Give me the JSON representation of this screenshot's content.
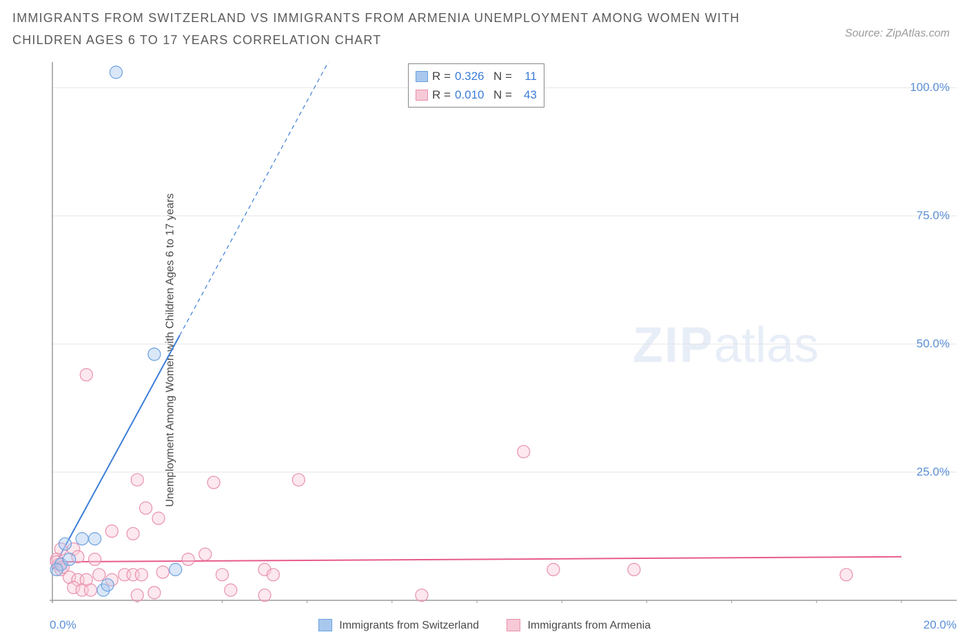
{
  "title": "IMMIGRANTS FROM SWITZERLAND VS IMMIGRANTS FROM ARMENIA UNEMPLOYMENT AMONG WOMEN WITH CHILDREN AGES 6 TO 17 YEARS CORRELATION CHART",
  "source": "Source: ZipAtlas.com",
  "ylabel": "Unemployment Among Women with Children Ages 6 to 17 years",
  "watermark_bold": "ZIP",
  "watermark_light": "atlas",
  "chart": {
    "type": "scatter",
    "xlim": [
      0,
      20
    ],
    "ylim": [
      0,
      105
    ],
    "x_ticks": [
      0,
      2,
      4,
      6,
      8,
      10,
      12,
      14,
      16,
      18,
      20
    ],
    "x_tick_labels_visible": {
      "0": "0.0%",
      "20": "20.0%"
    },
    "y_ticks": [
      25,
      50,
      75,
      100
    ],
    "y_tick_labels": {
      "25": "25.0%",
      "50": "50.0%",
      "75": "75.0%",
      "100": "100.0%"
    },
    "grid_color": "#e5e5e5",
    "axis_color": "#9a9a9a",
    "background_color": "#ffffff",
    "marker_radius": 9,
    "marker_stroke_width": 1.2,
    "marker_fill_opacity": 0.18,
    "line_width": 2
  },
  "series": {
    "blue": {
      "label": "Immigrants from Switzerland",
      "color_stroke": "#6aa0e0",
      "color_fill": "#a9c8ee",
      "line_color": "#3b7dd8",
      "R": "0.326",
      "N": "11",
      "points": [
        {
          "x": 1.5,
          "y": 103
        },
        {
          "x": 2.4,
          "y": 48
        },
        {
          "x": 0.3,
          "y": 11
        },
        {
          "x": 0.7,
          "y": 12
        },
        {
          "x": 1.0,
          "y": 12
        },
        {
          "x": 0.2,
          "y": 7
        },
        {
          "x": 0.1,
          "y": 6
        },
        {
          "x": 0.4,
          "y": 8
        },
        {
          "x": 1.2,
          "y": 2
        },
        {
          "x": 1.3,
          "y": 3
        },
        {
          "x": 2.9,
          "y": 6
        }
      ],
      "trend": {
        "x1": 0,
        "y1": 6,
        "x2": 6.5,
        "y2": 105,
        "dashed_from_x": 3.0
      }
    },
    "pink": {
      "label": "Immigrants from Armenia",
      "color_stroke": "#e890ac",
      "color_fill": "#f7c9d7",
      "line_color": "#e75a8d",
      "R": "0.010",
      "N": "43",
      "points": [
        {
          "x": 0.8,
          "y": 44
        },
        {
          "x": 11.1,
          "y": 29
        },
        {
          "x": 2.0,
          "y": 23.5
        },
        {
          "x": 3.8,
          "y": 23
        },
        {
          "x": 5.8,
          "y": 23.5
        },
        {
          "x": 2.2,
          "y": 18
        },
        {
          "x": 2.5,
          "y": 16
        },
        {
          "x": 1.4,
          "y": 13.5
        },
        {
          "x": 1.9,
          "y": 13
        },
        {
          "x": 0.2,
          "y": 10
        },
        {
          "x": 0.5,
          "y": 10
        },
        {
          "x": 0.1,
          "y": 8
        },
        {
          "x": 0.15,
          "y": 7
        },
        {
          "x": 0.1,
          "y": 7.5
        },
        {
          "x": 0.2,
          "y": 6
        },
        {
          "x": 0.25,
          "y": 6.5
        },
        {
          "x": 0.6,
          "y": 8.5
        },
        {
          "x": 1.0,
          "y": 8
        },
        {
          "x": 3.2,
          "y": 8
        },
        {
          "x": 3.6,
          "y": 9
        },
        {
          "x": 11.8,
          "y": 6
        },
        {
          "x": 13.7,
          "y": 6
        },
        {
          "x": 18.7,
          "y": 5
        },
        {
          "x": 0.4,
          "y": 4.5
        },
        {
          "x": 0.6,
          "y": 4
        },
        {
          "x": 0.8,
          "y": 4
        },
        {
          "x": 1.1,
          "y": 5
        },
        {
          "x": 1.4,
          "y": 4
        },
        {
          "x": 1.7,
          "y": 5
        },
        {
          "x": 1.9,
          "y": 5
        },
        {
          "x": 2.1,
          "y": 5
        },
        {
          "x": 2.6,
          "y": 5.5
        },
        {
          "x": 4.0,
          "y": 5
        },
        {
          "x": 5.0,
          "y": 6
        },
        {
          "x": 5.2,
          "y": 5
        },
        {
          "x": 0.5,
          "y": 2.5
        },
        {
          "x": 0.7,
          "y": 2
        },
        {
          "x": 0.9,
          "y": 2
        },
        {
          "x": 2.0,
          "y": 1
        },
        {
          "x": 2.4,
          "y": 1.5
        },
        {
          "x": 4.2,
          "y": 2
        },
        {
          "x": 5.0,
          "y": 1
        },
        {
          "x": 8.7,
          "y": 1
        }
      ],
      "trend": {
        "x1": 0,
        "y1": 7.5,
        "x2": 20,
        "y2": 8.5
      }
    }
  },
  "legend_box": {
    "rows": [
      {
        "swatch": "blue",
        "R_label": "R =",
        "N_label": "N ="
      },
      {
        "swatch": "pink",
        "R_label": "R =",
        "N_label": "N ="
      }
    ]
  }
}
